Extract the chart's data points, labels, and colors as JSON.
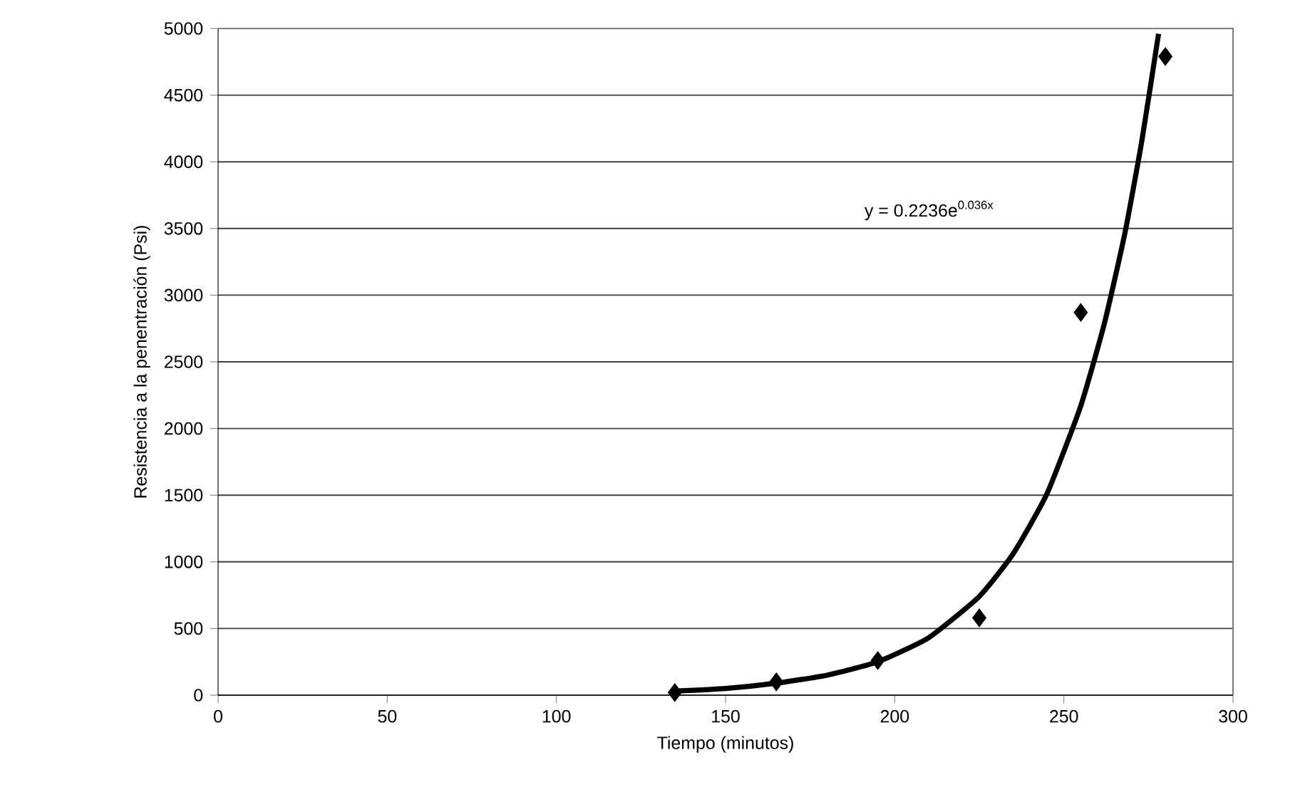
{
  "chart_data": {
    "type": "scatter",
    "xlabel": "Tiempo (minutos)",
    "ylabel": "Resistencia a la penentración (Psi)",
    "xlim": [
      0,
      300
    ],
    "ylim": [
      0,
      5000
    ],
    "xticks": [
      0,
      50,
      100,
      150,
      200,
      250,
      300
    ],
    "yticks": [
      0,
      500,
      1000,
      1500,
      2000,
      2500,
      3000,
      3500,
      4000,
      4500,
      5000
    ],
    "grid": "y",
    "annotations": [
      "y = 0.2236e$^{0.036x}$"
    ],
    "series": [
      {
        "color": "#000000",
        "marker": "diamond",
        "x": [
          135,
          165,
          195,
          225,
          255,
          280
        ],
        "values": [
          20,
          100,
          260,
          580,
          2870,
          4790
        ]
      },
      {
        "type": "line",
        "color": "#000000",
        "line_style": "solid",
        "x": [
          135,
          150,
          165,
          180,
          195,
          210,
          225,
          235,
          245,
          255,
          262,
          268,
          273,
          277.5,
          278
        ],
        "values": [
          30,
          50,
          90,
          150,
          250,
          430,
          740,
          1060,
          1510,
          2170,
          2790,
          3460,
          4150,
          4880,
          4960
        ]
      }
    ]
  }
}
